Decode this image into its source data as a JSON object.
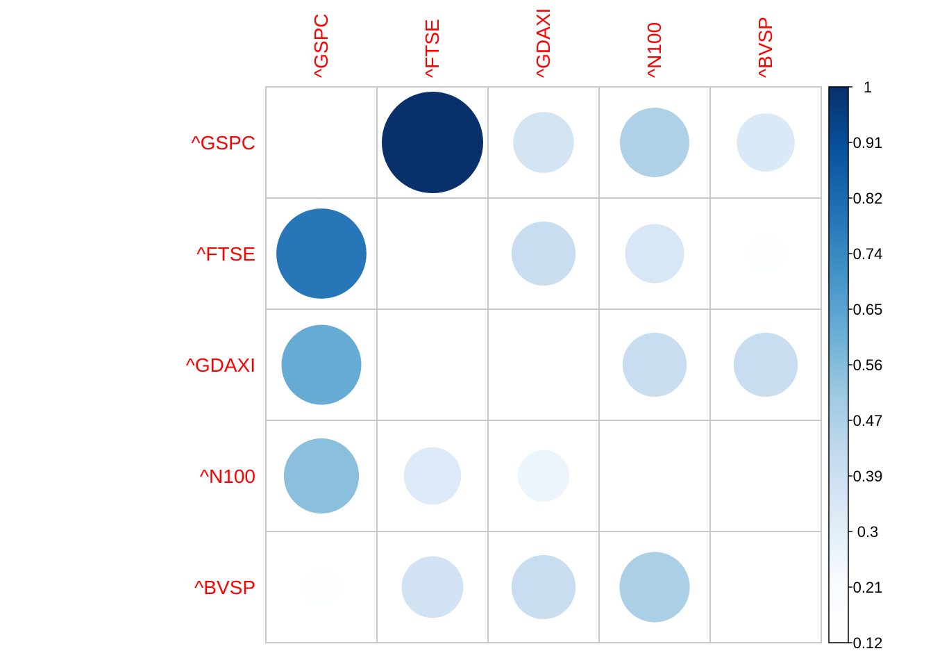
{
  "chart_data": {
    "type": "heatmap",
    "title": "",
    "method": "circle",
    "labels": [
      "^GSPC",
      "^FTSE",
      "^GDAXI",
      "^N100",
      "^BVSP"
    ],
    "matrix": [
      [
        null,
        1.0,
        0.36,
        0.47,
        0.33
      ],
      [
        0.79,
        null,
        0.4,
        0.34,
        0.15
      ],
      [
        0.62,
        0.12,
        null,
        0.4,
        0.4
      ],
      [
        0.55,
        0.32,
        0.26,
        null,
        null
      ],
      [
        0.15,
        0.37,
        0.4,
        0.48,
        null
      ]
    ],
    "colorbar": {
      "ticks": [
        "1",
        "0.91",
        "0.82",
        "0.74",
        "0.65",
        "0.56",
        "0.47",
        "0.39",
        "0.3",
        "0.21",
        "0.12"
      ],
      "min": 0.12,
      "max": 1.0,
      "colors": [
        "#ffffff",
        "#f7fbff",
        "#deebf7",
        "#c6dbef",
        "#9ecae1",
        "#6baed6",
        "#4292c6",
        "#2171b5",
        "#08519c",
        "#08306b"
      ]
    },
    "label_color": "#ff0000",
    "grid": true
  }
}
